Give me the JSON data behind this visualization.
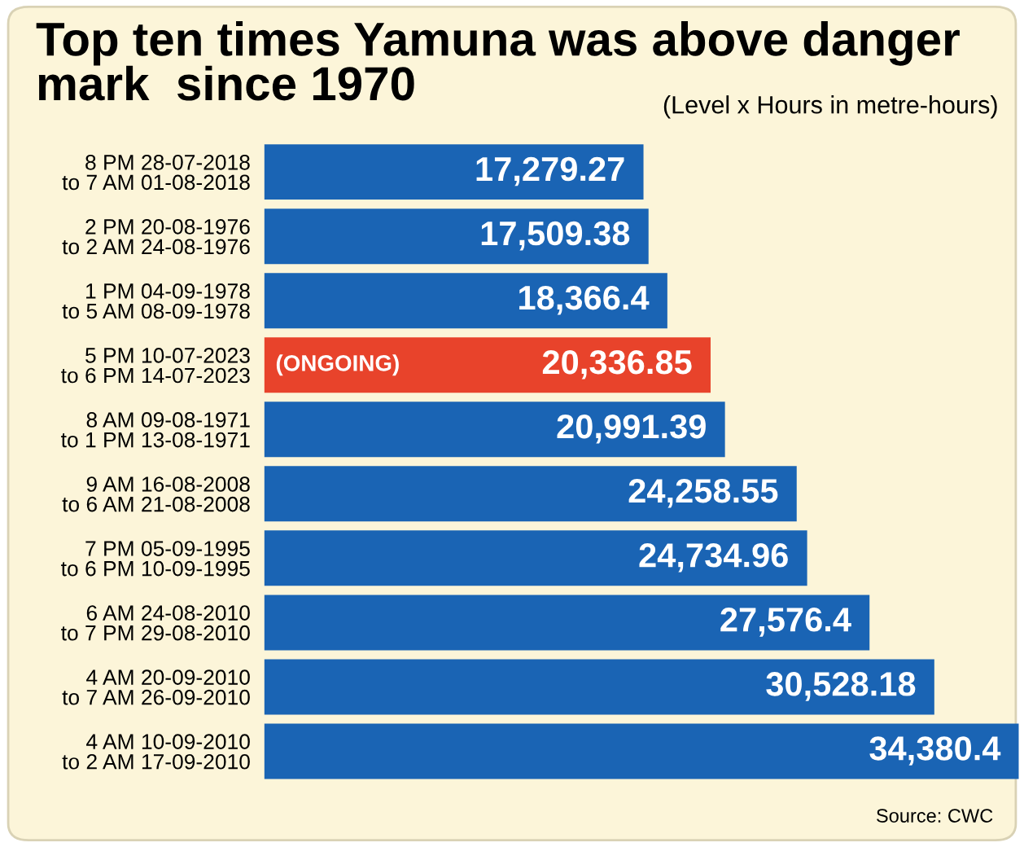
{
  "chart_data": {
    "type": "bar",
    "orientation": "horizontal",
    "title": "Top ten times Yamuna was above danger\nmark  since 1970",
    "subtitle": "(Level x Hours in metre-hours)",
    "categories": [
      "8 PM 28-07-2018\nto 7 AM 01-08-2018",
      "2 PM 20-08-1976\nto 2 AM 24-08-1976",
      "1 PM 04-09-1978\nto 5 AM 08-09-1978",
      "5 PM 10-07-2023\nto 6 PM 14-07-2023",
      "8 AM 09-08-1971\nto 1 PM 13-08-1971",
      "9 AM 16-08-2008\nto 6 AM 21-08-2008",
      "7 PM 05-09-1995\nto 6 PM 10-09-1995",
      "6 AM 24-08-2010\nto 7 PM 29-08-2010",
      "4 AM 20-09-2010\nto 7 AM 26-09-2010",
      "4 AM 10-09-2010\nto 2 AM 17-09-2010"
    ],
    "values": [
      17279.27,
      17509.38,
      18366.4,
      20336.85,
      20991.39,
      24258.55,
      24734.96,
      27576.4,
      30528.18,
      34380.4
    ],
    "value_labels": [
      "17,279.27",
      "17,509.38",
      "18,366.4",
      "20,336.85",
      "20,991.39",
      "24,258.55",
      "24,734.96",
      "27,576.4",
      "30,528.18",
      "34,380.4"
    ],
    "colors": [
      "#1a64b4",
      "#1a64b4",
      "#1a64b4",
      "#e8432b",
      "#1a64b4",
      "#1a64b4",
      "#1a64b4",
      "#1a64b4",
      "#1a64b4",
      "#1a64b4"
    ],
    "annotations": [
      {
        "text": "(ONGOING)",
        "y": "5 PM 10-07-2023\nto 6 PM 14-07-2023"
      },
      "Source: CWC"
    ],
    "grid": false
  }
}
